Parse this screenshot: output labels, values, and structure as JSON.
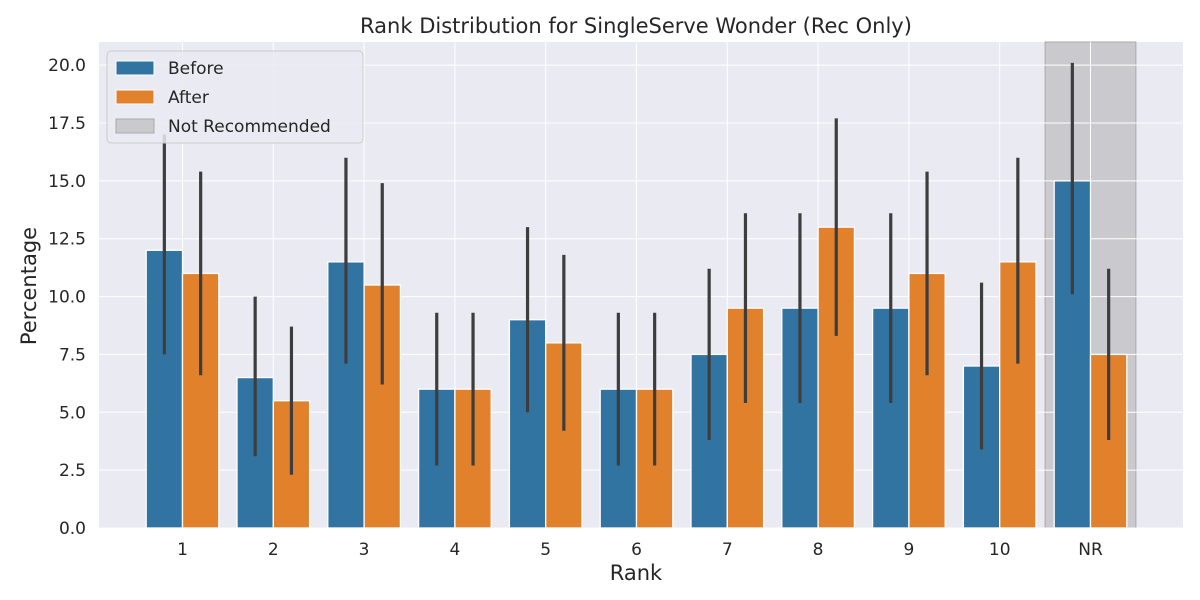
{
  "chart_data": {
    "type": "bar",
    "title": "Rank Distribution for SingleServe Wonder (Rec Only)",
    "xlabel": "Rank",
    "ylabel": "Percentage",
    "categories": [
      "1",
      "2",
      "3",
      "4",
      "5",
      "6",
      "7",
      "8",
      "9",
      "10",
      "NR"
    ],
    "ylim": [
      0,
      21
    ],
    "yticks": [
      "0.0",
      "2.5",
      "5.0",
      "7.5",
      "10.0",
      "12.5",
      "15.0",
      "17.5",
      "20.0"
    ],
    "grid": true,
    "legend_position": "top-left",
    "series": [
      {
        "name": "Before",
        "color": "#3274a1",
        "values": [
          12.0,
          6.5,
          11.5,
          6.0,
          9.0,
          6.0,
          7.5,
          9.5,
          9.5,
          7.0,
          15.0
        ],
        "ci_low": [
          7.5,
          3.1,
          7.1,
          2.7,
          5.0,
          2.7,
          3.8,
          5.4,
          5.4,
          3.4,
          10.1
        ],
        "ci_high": [
          17.0,
          10.0,
          16.0,
          9.3,
          13.0,
          9.3,
          11.2,
          13.6,
          13.6,
          10.6,
          20.1
        ]
      },
      {
        "name": "After",
        "color": "#e1812c",
        "values": [
          11.0,
          5.5,
          10.5,
          6.0,
          8.0,
          6.0,
          9.5,
          13.0,
          11.0,
          11.5,
          7.5
        ],
        "ci_low": [
          6.6,
          2.3,
          6.2,
          2.7,
          4.2,
          2.7,
          5.4,
          8.3,
          6.6,
          7.1,
          3.8
        ],
        "ci_high": [
          15.4,
          8.7,
          14.9,
          9.3,
          11.8,
          9.3,
          13.6,
          17.7,
          15.4,
          16.0,
          11.2
        ]
      }
    ],
    "highlight": {
      "name": "Not Recommended",
      "category": "NR",
      "color": "#a9a9a9"
    },
    "legend": [
      "Before",
      "After",
      "Not Recommended"
    ]
  }
}
